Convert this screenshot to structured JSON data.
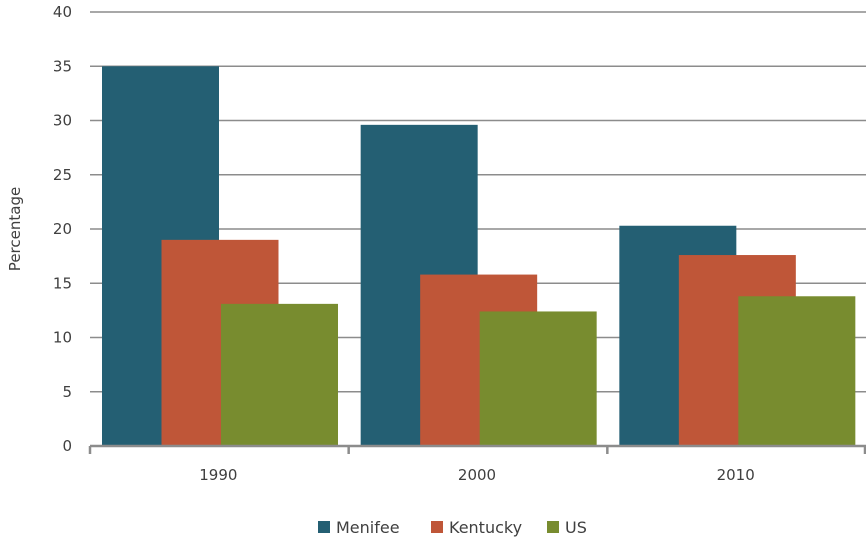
{
  "chart_data": {
    "type": "bar",
    "title": "",
    "xlabel": "",
    "ylabel": "Percentage",
    "categories": [
      "1990",
      "2000",
      "2010"
    ],
    "series": [
      {
        "name": "Menifee",
        "color": "#245f73",
        "values": [
          35.0,
          29.6,
          20.3
        ]
      },
      {
        "name": "Kentucky",
        "color": "#bf5638",
        "values": [
          19.0,
          15.8,
          17.6
        ]
      },
      {
        "name": "US",
        "color": "#788c2f",
        "values": [
          13.1,
          12.4,
          13.8
        ]
      }
    ],
    "ylim": [
      0,
      40
    ],
    "yticks": [
      "0",
      "5",
      "10",
      "15",
      "20",
      "25",
      "30",
      "35",
      "40"
    ],
    "grid": true,
    "legend": "bottom"
  }
}
